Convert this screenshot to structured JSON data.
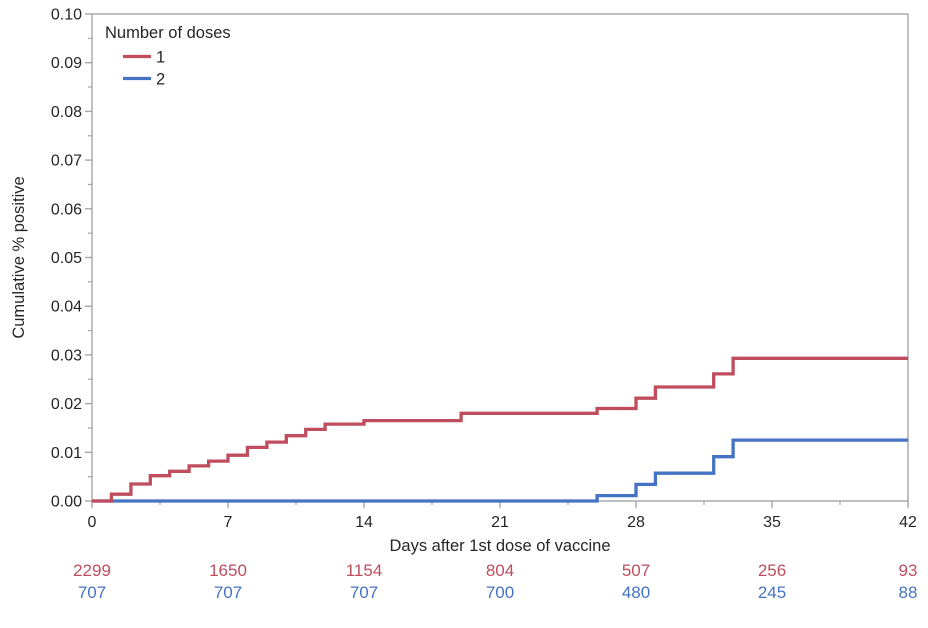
{
  "chart_data": {
    "type": "line",
    "subtype": "step-after",
    "title": "",
    "xlabel": "Days after 1st dose of vaccine",
    "ylabel": "Cumulative % positive",
    "xlim": [
      0,
      42
    ],
    "ylim": [
      0,
      0.1
    ],
    "x_major_ticks": [
      0,
      7,
      14,
      21,
      28,
      35,
      42
    ],
    "x_minor_ticks": [
      3.5,
      10.5,
      17.5,
      24.5,
      31.5,
      38.5
    ],
    "y_major_step": 0.01,
    "y_minor_step": 0.005,
    "y_tick_decimals": 2,
    "grid": false,
    "frame": true,
    "legend": {
      "title": "Number of doses",
      "position": "top-left-inside",
      "items": [
        {
          "label": "1",
          "color": "#bf4d5e"
        },
        {
          "label": "2",
          "color": "#4573c4"
        }
      ]
    },
    "series": [
      {
        "name": "1",
        "color": "#bf4d5e",
        "points": [
          [
            0,
            0
          ],
          [
            1,
            0.0014
          ],
          [
            2,
            0.0035
          ],
          [
            3,
            0.0052
          ],
          [
            4,
            0.0061
          ],
          [
            5,
            0.0072
          ],
          [
            6,
            0.0082
          ],
          [
            7,
            0.0094
          ],
          [
            8,
            0.011
          ],
          [
            9,
            0.0121
          ],
          [
            10,
            0.0134
          ],
          [
            11,
            0.0147
          ],
          [
            12,
            0.0158
          ],
          [
            14,
            0.0165
          ],
          [
            19,
            0.018
          ],
          [
            26,
            0.019
          ],
          [
            28,
            0.0211
          ],
          [
            29,
            0.0234
          ],
          [
            32,
            0.0261
          ],
          [
            33,
            0.0293
          ],
          [
            42,
            0.0293
          ]
        ]
      },
      {
        "name": "2",
        "color": "#4573c4",
        "points": [
          [
            0,
            0
          ],
          [
            26,
            0.0011
          ],
          [
            28,
            0.0034
          ],
          [
            29,
            0.0057
          ],
          [
            32,
            0.0091
          ],
          [
            33,
            0.0125
          ],
          [
            42,
            0.0125
          ]
        ]
      }
    ],
    "at_risk": {
      "x": [
        0,
        7,
        14,
        21,
        28,
        35,
        42
      ],
      "rows": [
        {
          "series": "1",
          "color": "#bf4d5e",
          "values": [
            "2299",
            "1650",
            "1154",
            "804",
            "507",
            "256",
            "93"
          ]
        },
        {
          "series": "2",
          "color": "#4573c4",
          "values": [
            "707",
            "707",
            "707",
            "700",
            "480",
            "245",
            "88"
          ]
        }
      ]
    },
    "colors": {
      "axis": "#a6a6a6",
      "text": "#262626"
    }
  }
}
